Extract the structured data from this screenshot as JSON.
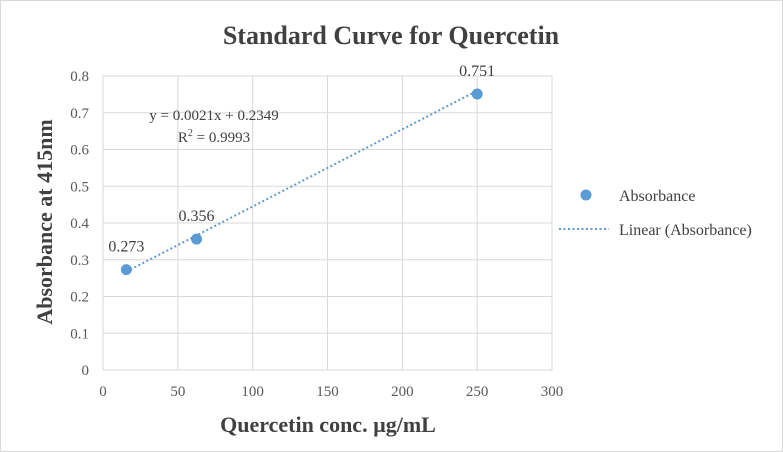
{
  "chart_data": {
    "type": "scatter",
    "title": "Standard Curve for Quercetin",
    "xlabel": "Quercetin conc. µg/mL",
    "ylabel": "Absorbance at 415nm",
    "xlim": [
      0,
      300
    ],
    "ylim": [
      0,
      0.8
    ],
    "x_ticks": [
      0,
      50,
      100,
      150,
      200,
      250,
      300
    ],
    "y_ticks": [
      "0",
      "0.1",
      "0.2",
      "0.3",
      "0.4",
      "0.5",
      "0.6",
      "0.7",
      "0.8"
    ],
    "grid": true,
    "series": [
      {
        "name": "Absorbance",
        "x": [
          15.6,
          62.5,
          250
        ],
        "y": [
          0.273,
          0.356,
          0.751
        ],
        "labels": [
          "0.273",
          "0.356",
          "0.751"
        ],
        "color": "#5b9bd5"
      }
    ],
    "trendline": {
      "name": "Linear (Absorbance)",
      "slope": 0.0021,
      "intercept": 0.2349,
      "equation": "y = 0.0021x + 0.2349",
      "r2_prefix": "R",
      "r2_sup": "2",
      "r2_value": " = 0.9993",
      "color": "#5b9bd5"
    },
    "legend_position": "right"
  }
}
